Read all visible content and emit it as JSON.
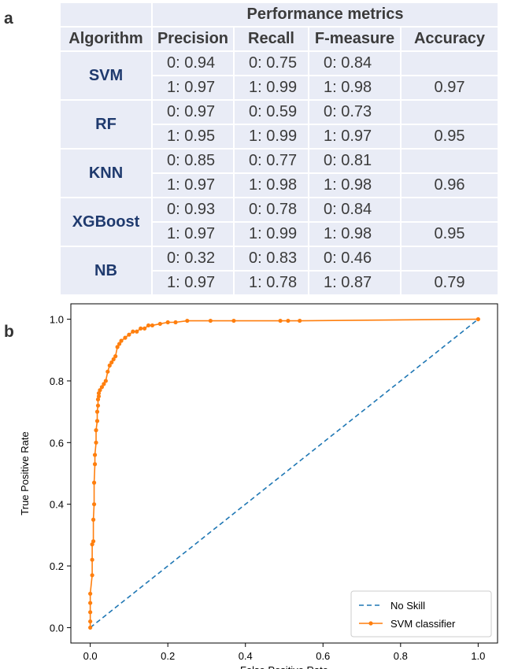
{
  "panels": {
    "a": "a",
    "b": "b"
  },
  "table": {
    "group_header": "Performance metrics",
    "columns": [
      "Algorithm",
      "Precision",
      "Recall",
      "F-measure",
      "Accuracy"
    ],
    "rows": [
      {
        "algorithm": "SVM",
        "class0": [
          "0: 0.94",
          "0: 0.75",
          "0: 0.84"
        ],
        "class1": [
          "1: 0.97",
          "1: 0.99",
          "1: 0.98"
        ],
        "accuracy": "0.97"
      },
      {
        "algorithm": "RF",
        "class0": [
          "0: 0.97",
          "0: 0.59",
          "0: 0.73"
        ],
        "class1": [
          "1: 0.95",
          "1: 0.99",
          "1: 0.97"
        ],
        "accuracy": "0.95"
      },
      {
        "algorithm": "KNN",
        "class0": [
          "0: 0.85",
          "0: 0.77",
          "0: 0.81"
        ],
        "class1": [
          "1: 0.97",
          "1: 0.98",
          "1: 0.98"
        ],
        "accuracy": "0.96"
      },
      {
        "algorithm": "XGBoost",
        "class0": [
          "0: 0.93",
          "0: 0.78",
          "0: 0.84"
        ],
        "class1": [
          "1: 0.97",
          "1: 0.99",
          "1: 0.98"
        ],
        "accuracy": "0.95"
      },
      {
        "algorithm": "NB",
        "class0": [
          "0: 0.32",
          "0: 0.83",
          "0: 0.46"
        ],
        "class1": [
          "1: 0.97",
          "1: 0.78",
          "1: 0.87"
        ],
        "accuracy": "0.79"
      }
    ]
  },
  "chart_data": {
    "type": "line",
    "title": "",
    "xlabel": "False Positive Rate",
    "ylabel": "True Positive Rate",
    "xlim": [
      -0.05,
      1.05
    ],
    "ylim": [
      -0.05,
      1.05
    ],
    "xticks": [
      "0.0",
      "0.2",
      "0.4",
      "0.6",
      "0.8",
      "1.0"
    ],
    "yticks": [
      "0.0",
      "0.2",
      "0.4",
      "0.6",
      "0.8",
      "1.0"
    ],
    "grid": false,
    "legend_position": "bottom-right",
    "series": [
      {
        "name": "No Skill",
        "style": "dashed",
        "color": "#1f77b4",
        "marker": "none",
        "x": [
          0,
          1
        ],
        "y": [
          0,
          1
        ]
      },
      {
        "name": "SVM classifier",
        "style": "solid",
        "color": "#ff7f0e",
        "marker": "dot",
        "x": [
          0,
          0,
          0,
          0,
          0,
          0.005,
          0.005,
          0.005,
          0.008,
          0.008,
          0.01,
          0.01,
          0.012,
          0.012,
          0.015,
          0.015,
          0.018,
          0.018,
          0.02,
          0.02,
          0.022,
          0.022,
          0.025,
          0.03,
          0.035,
          0.04,
          0.045,
          0.05,
          0.055,
          0.06,
          0.065,
          0.07,
          0.075,
          0.08,
          0.09,
          0.1,
          0.11,
          0.12,
          0.13,
          0.14,
          0.15,
          0.16,
          0.18,
          0.2,
          0.22,
          0.25,
          0.31,
          0.37,
          0.49,
          0.51,
          0.54,
          1.0
        ],
        "y": [
          0,
          0.02,
          0.05,
          0.08,
          0.11,
          0.17,
          0.22,
          0.27,
          0.28,
          0.35,
          0.4,
          0.47,
          0.53,
          0.56,
          0.6,
          0.64,
          0.67,
          0.7,
          0.72,
          0.74,
          0.75,
          0.76,
          0.77,
          0.78,
          0.79,
          0.8,
          0.83,
          0.85,
          0.86,
          0.87,
          0.88,
          0.91,
          0.92,
          0.93,
          0.94,
          0.95,
          0.96,
          0.96,
          0.97,
          0.97,
          0.98,
          0.98,
          0.985,
          0.99,
          0.99,
          0.995,
          0.995,
          0.995,
          0.995,
          0.995,
          0.995,
          1.0
        ]
      }
    ]
  }
}
